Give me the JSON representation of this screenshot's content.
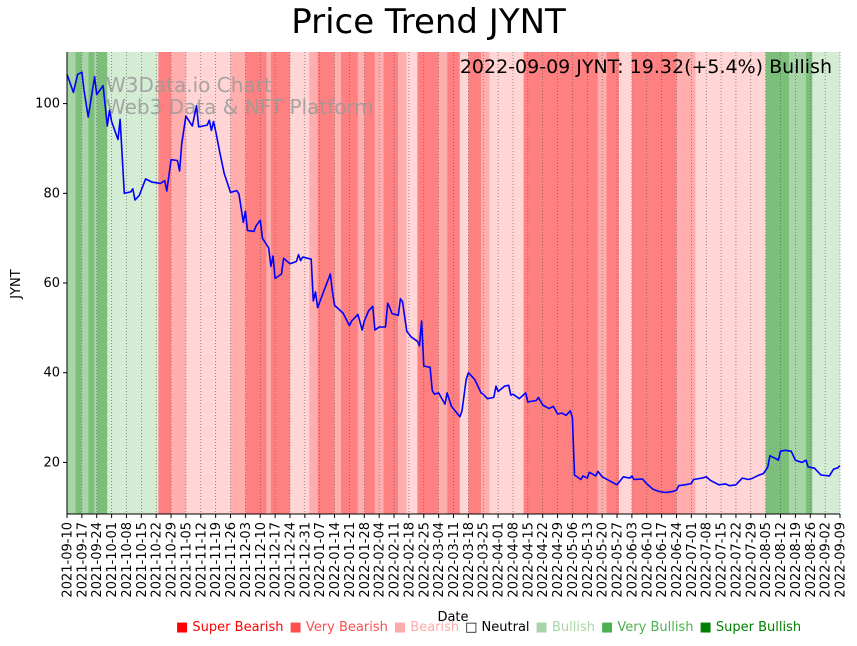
{
  "chart_data": {
    "type": "line",
    "title": "Price Trend JYNT",
    "annotation": "2022-09-09 JYNT: 19.32(+5.4%) Bullish",
    "watermark": [
      "W3Data.io Chart",
      "Web3 Data & NFT Platform"
    ],
    "xlabel": "Date",
    "ylabel": "JYNT",
    "x_range": [
      "2021-09-10",
      "2022-09-09"
    ],
    "ylim": [
      8.5,
      111.5
    ],
    "y_ticks": [
      20,
      40,
      60,
      80,
      100
    ],
    "x_ticks": [
      "2021-09-10",
      "2021-09-17",
      "2021-09-24",
      "2021-10-01",
      "2021-10-08",
      "2021-10-15",
      "2021-10-22",
      "2021-10-29",
      "2021-11-05",
      "2021-11-12",
      "2021-11-19",
      "2021-11-26",
      "2021-12-03",
      "2021-12-10",
      "2021-12-17",
      "2021-12-24",
      "2021-12-31",
      "2022-01-07",
      "2022-01-14",
      "2022-01-21",
      "2022-01-28",
      "2022-02-04",
      "2022-02-11",
      "2022-02-18",
      "2022-02-25",
      "2022-03-04",
      "2022-03-11",
      "2022-03-18",
      "2022-03-25",
      "2022-04-01",
      "2022-04-08",
      "2022-04-15",
      "2022-04-22",
      "2022-04-29",
      "2022-05-06",
      "2022-05-13",
      "2022-05-20",
      "2022-05-27",
      "2022-06-03",
      "2022-06-10",
      "2022-06-17",
      "2022-06-24",
      "2022-07-01",
      "2022-07-08",
      "2022-07-15",
      "2022-07-22",
      "2022-07-29",
      "2022-08-05",
      "2022-08-12",
      "2022-08-19",
      "2022-08-26",
      "2022-09-02",
      "2022-09-09"
    ],
    "series": [
      {
        "name": "JYNT",
        "color": "#0000ff",
        "points": [
          [
            "2021-09-10",
            106.5
          ],
          [
            "2021-09-13",
            102.5
          ],
          [
            "2021-09-15",
            106.5
          ],
          [
            "2021-09-17",
            107
          ],
          [
            "2021-09-18",
            103
          ],
          [
            "2021-09-20",
            97
          ],
          [
            "2021-09-23",
            106
          ],
          [
            "2021-09-24",
            102
          ],
          [
            "2021-09-27",
            104
          ],
          [
            "2021-09-29",
            95
          ],
          [
            "2021-09-30",
            98.5
          ],
          [
            "2021-10-01",
            96
          ],
          [
            "2021-10-04",
            92
          ],
          [
            "2021-10-05",
            96.5
          ],
          [
            "2021-10-07",
            80
          ],
          [
            "2021-10-10",
            80.3
          ],
          [
            "2021-10-11",
            81
          ],
          [
            "2021-10-12",
            78.5
          ],
          [
            "2021-10-14",
            79.5
          ],
          [
            "2021-10-17",
            83.2
          ],
          [
            "2021-10-20",
            82.5
          ],
          [
            "2021-10-24",
            82.2
          ],
          [
            "2021-10-26",
            82.8
          ],
          [
            "2021-10-27",
            80.5
          ],
          [
            "2021-10-29",
            87.5
          ],
          [
            "2021-11-01",
            87.3
          ],
          [
            "2021-11-02",
            85
          ],
          [
            "2021-11-03",
            91
          ],
          [
            "2021-11-05",
            97.2
          ],
          [
            "2021-11-06",
            96.5
          ],
          [
            "2021-11-08",
            95
          ],
          [
            "2021-11-10",
            99.5
          ],
          [
            "2021-11-11",
            94.8
          ],
          [
            "2021-11-15",
            95.2
          ],
          [
            "2021-11-16",
            96.3
          ],
          [
            "2021-11-17",
            94
          ],
          [
            "2021-11-18",
            96
          ],
          [
            "2021-11-19",
            93.8
          ],
          [
            "2021-11-21",
            89
          ],
          [
            "2021-11-23",
            84.5
          ],
          [
            "2021-11-26",
            80.2
          ],
          [
            "2021-11-29",
            80.6
          ],
          [
            "2021-11-30",
            79.8
          ],
          [
            "2021-12-02",
            73.5
          ],
          [
            "2021-12-03",
            76
          ],
          [
            "2021-12-04",
            71.7
          ],
          [
            "2021-12-07",
            71.5
          ],
          [
            "2021-12-08",
            72.7
          ],
          [
            "2021-12-10",
            74
          ],
          [
            "2021-12-11",
            70
          ],
          [
            "2021-12-14",
            67.8
          ],
          [
            "2021-12-15",
            63.7
          ],
          [
            "2021-12-16",
            66
          ],
          [
            "2021-12-17",
            61
          ],
          [
            "2021-12-20",
            62
          ],
          [
            "2021-12-21",
            65.5
          ],
          [
            "2021-12-24",
            64.3
          ],
          [
            "2021-12-27",
            64.8
          ],
          [
            "2021-12-28",
            66.3
          ],
          [
            "2021-12-29",
            65
          ],
          [
            "2021-12-30",
            65.8
          ],
          [
            "2022-01-03",
            65.3
          ],
          [
            "2022-01-04",
            56
          ],
          [
            "2022-01-05",
            58
          ],
          [
            "2022-01-06",
            54.5
          ],
          [
            "2022-01-08",
            57
          ],
          [
            "2022-01-12",
            62
          ],
          [
            "2022-01-13",
            58
          ],
          [
            "2022-01-14",
            55
          ],
          [
            "2022-01-18",
            53.3
          ],
          [
            "2022-01-21",
            50.5
          ],
          [
            "2022-01-22",
            51.5
          ],
          [
            "2022-01-25",
            53
          ],
          [
            "2022-01-27",
            49.5
          ],
          [
            "2022-01-28",
            51.5
          ],
          [
            "2022-01-30",
            53.8
          ],
          [
            "2022-02-01",
            54.8
          ],
          [
            "2022-02-02",
            49.5
          ],
          [
            "2022-02-04",
            50.2
          ],
          [
            "2022-02-07",
            50.2
          ],
          [
            "2022-02-08",
            55.5
          ],
          [
            "2022-02-09",
            54.5
          ],
          [
            "2022-02-10",
            53.2
          ],
          [
            "2022-02-13",
            52.8
          ],
          [
            "2022-02-14",
            56.5
          ],
          [
            "2022-02-15",
            55.8
          ],
          [
            "2022-02-17",
            49.2
          ],
          [
            "2022-02-19",
            48
          ],
          [
            "2022-02-22",
            47
          ],
          [
            "2022-02-23",
            46
          ],
          [
            "2022-02-24",
            51.5
          ],
          [
            "2022-02-25",
            41.5
          ],
          [
            "2022-02-28",
            41.2
          ],
          [
            "2022-03-01",
            36
          ],
          [
            "2022-03-02",
            35.2
          ],
          [
            "2022-03-04",
            35.5
          ],
          [
            "2022-03-07",
            33
          ],
          [
            "2022-03-08",
            35.5
          ],
          [
            "2022-03-10",
            32.5
          ],
          [
            "2022-03-14",
            30.2
          ],
          [
            "2022-03-15",
            31.5
          ],
          [
            "2022-03-17",
            38.5
          ],
          [
            "2022-03-18",
            40
          ],
          [
            "2022-03-21",
            38.5
          ],
          [
            "2022-03-24",
            35.5
          ],
          [
            "2022-03-25",
            35.2
          ],
          [
            "2022-03-27",
            34.2
          ],
          [
            "2022-03-30",
            34.5
          ],
          [
            "2022-03-31",
            37
          ],
          [
            "2022-04-01",
            35.8
          ],
          [
            "2022-04-04",
            37
          ],
          [
            "2022-04-06",
            37.2
          ],
          [
            "2022-04-07",
            35
          ],
          [
            "2022-04-08",
            35.2
          ],
          [
            "2022-04-11",
            34.2
          ],
          [
            "2022-04-14",
            35.5
          ],
          [
            "2022-04-15",
            33.5
          ],
          [
            "2022-04-19",
            33.8
          ],
          [
            "2022-04-20",
            34.5
          ],
          [
            "2022-04-22",
            32.8
          ],
          [
            "2022-04-25",
            32
          ],
          [
            "2022-04-27",
            32.5
          ],
          [
            "2022-04-29",
            30.8
          ],
          [
            "2022-05-01",
            31
          ],
          [
            "2022-05-03",
            30.5
          ],
          [
            "2022-05-05",
            31.5
          ],
          [
            "2022-05-06",
            30
          ],
          [
            "2022-05-07",
            17.2
          ],
          [
            "2022-05-10",
            16.2
          ],
          [
            "2022-05-11",
            17
          ],
          [
            "2022-05-13",
            16.5
          ],
          [
            "2022-05-14",
            17.8
          ],
          [
            "2022-05-17",
            17
          ],
          [
            "2022-05-18",
            18
          ],
          [
            "2022-05-20",
            16.8
          ],
          [
            "2022-05-25",
            15.5
          ],
          [
            "2022-05-27",
            15
          ],
          [
            "2022-05-30",
            16.8
          ],
          [
            "2022-06-02",
            16.5
          ],
          [
            "2022-06-03",
            17
          ],
          [
            "2022-06-04",
            16.2
          ],
          [
            "2022-06-08",
            16.3
          ],
          [
            "2022-06-10",
            15.2
          ],
          [
            "2022-06-13",
            14
          ],
          [
            "2022-06-16",
            13.5
          ],
          [
            "2022-06-19",
            13.3
          ],
          [
            "2022-06-22",
            13.5
          ],
          [
            "2022-06-24",
            13.8
          ],
          [
            "2022-06-25",
            14.8
          ],
          [
            "2022-06-28",
            15
          ],
          [
            "2022-07-01",
            15.3
          ],
          [
            "2022-07-02",
            16.2
          ],
          [
            "2022-07-06",
            16.5
          ],
          [
            "2022-07-08",
            16.8
          ],
          [
            "2022-07-10",
            16
          ],
          [
            "2022-07-14",
            15
          ],
          [
            "2022-07-17",
            15.2
          ],
          [
            "2022-07-19",
            14.8
          ],
          [
            "2022-07-22",
            15
          ],
          [
            "2022-07-25",
            16.5
          ],
          [
            "2022-07-28",
            16.2
          ],
          [
            "2022-07-30",
            16.5
          ],
          [
            "2022-08-01",
            17
          ],
          [
            "2022-08-02",
            17.2
          ],
          [
            "2022-08-04",
            17.5
          ],
          [
            "2022-08-06",
            19
          ],
          [
            "2022-08-07",
            21.5
          ],
          [
            "2022-08-09",
            21
          ],
          [
            "2022-08-10",
            20.8
          ],
          [
            "2022-08-11",
            20.5
          ],
          [
            "2022-08-12",
            22.5
          ],
          [
            "2022-08-14",
            22.7
          ],
          [
            "2022-08-17",
            22.5
          ],
          [
            "2022-08-19",
            20.5
          ],
          [
            "2022-08-22",
            20
          ],
          [
            "2022-08-24",
            20.5
          ],
          [
            "2022-08-25",
            19
          ],
          [
            "2022-08-28",
            18.7
          ],
          [
            "2022-08-31",
            17.2
          ],
          [
            "2022-09-04",
            17
          ],
          [
            "2022-09-06",
            18.5
          ],
          [
            "2022-09-08",
            18.8
          ],
          [
            "2022-09-09",
            19.32
          ]
        ]
      }
    ],
    "sentiment_bands": [
      [
        "2021-09-10",
        "2021-09-14",
        "bullish"
      ],
      [
        "2021-09-14",
        "2021-09-17",
        "very_bullish"
      ],
      [
        "2021-09-17",
        "2021-09-20",
        "bullish"
      ],
      [
        "2021-09-20",
        "2021-09-23",
        "very_bullish"
      ],
      [
        "2021-09-23",
        "2021-09-24",
        "bullish"
      ],
      [
        "2021-09-24",
        "2021-09-29",
        "very_bullish"
      ],
      [
        "2021-09-29",
        "2021-10-23",
        "light_bullish"
      ],
      [
        "2021-10-23",
        "2021-10-29",
        "very_bearish"
      ],
      [
        "2021-10-29",
        "2021-11-05",
        "bearish"
      ],
      [
        "2021-11-05",
        "2021-11-26",
        "light_bearish"
      ],
      [
        "2021-11-26",
        "2021-12-03",
        "bearish"
      ],
      [
        "2021-12-03",
        "2021-12-13",
        "very_bearish"
      ],
      [
        "2021-12-13",
        "2021-12-15",
        "bearish"
      ],
      [
        "2021-12-15",
        "2021-12-24",
        "very_bearish"
      ],
      [
        "2021-12-24",
        "2022-01-02",
        "light_bearish"
      ],
      [
        "2022-01-02",
        "2022-01-06",
        "bearish"
      ],
      [
        "2022-01-06",
        "2022-01-14",
        "very_bearish"
      ],
      [
        "2022-01-14",
        "2022-01-17",
        "bearish"
      ],
      [
        "2022-01-17",
        "2022-01-25",
        "very_bearish"
      ],
      [
        "2022-01-25",
        "2022-01-28",
        "bearish"
      ],
      [
        "2022-01-28",
        "2022-02-02",
        "very_bearish"
      ],
      [
        "2022-02-02",
        "2022-02-06",
        "bearish"
      ],
      [
        "2022-02-06",
        "2022-02-13",
        "very_bearish"
      ],
      [
        "2022-02-13",
        "2022-02-17",
        "bearish"
      ],
      [
        "2022-02-17",
        "2022-02-22",
        "light_bearish"
      ],
      [
        "2022-02-22",
        "2022-03-04",
        "very_bearish"
      ],
      [
        "2022-03-04",
        "2022-03-08",
        "bearish"
      ],
      [
        "2022-03-08",
        "2022-03-14",
        "very_bearish"
      ],
      [
        "2022-03-14",
        "2022-03-18",
        "light_bearish"
      ],
      [
        "2022-03-18",
        "2022-03-24",
        "very_bearish"
      ],
      [
        "2022-03-24",
        "2022-03-28",
        "bearish"
      ],
      [
        "2022-03-28",
        "2022-04-13",
        "light_bearish"
      ],
      [
        "2022-04-13",
        "2022-05-18",
        "very_bearish"
      ],
      [
        "2022-05-18",
        "2022-05-22",
        "bearish"
      ],
      [
        "2022-05-22",
        "2022-05-28",
        "very_bearish"
      ],
      [
        "2022-05-28",
        "2022-06-03",
        "light_bearish"
      ],
      [
        "2022-06-03",
        "2022-06-24",
        "very_bearish"
      ],
      [
        "2022-06-24",
        "2022-07-03",
        "bearish"
      ],
      [
        "2022-07-03",
        "2022-08-05",
        "light_bearish"
      ],
      [
        "2022-08-05",
        "2022-08-16",
        "very_bullish"
      ],
      [
        "2022-08-16",
        "2022-08-24",
        "bullish"
      ],
      [
        "2022-08-24",
        "2022-08-27",
        "very_bullish"
      ],
      [
        "2022-08-27",
        "2022-09-09",
        "light_bullish"
      ]
    ],
    "band_colors": {
      "very_bullish": "#7bbf7b",
      "bullish": "#a8d5a8",
      "light_bullish": "#d4ebd4",
      "very_bearish": "#ff8080",
      "bearish": "#ffadad",
      "light_bearish": "#ffd5d5"
    },
    "legend": [
      {
        "label": "Super Bearish",
        "color": "#ff0000"
      },
      {
        "label": "Very Bearish",
        "color": "#ff4d4d"
      },
      {
        "label": "Bearish",
        "color": "#ffaaaa"
      },
      {
        "label": "Neutral",
        "color": "#000000"
      },
      {
        "label": "Bullish",
        "color": "#a8d5a8"
      },
      {
        "label": "Very Bullish",
        "color": "#4caf50"
      },
      {
        "label": "Super Bullish",
        "color": "#008000"
      }
    ],
    "legend_markers": [
      "■",
      "■",
      "■",
      "□",
      "■",
      "■",
      "■"
    ]
  }
}
